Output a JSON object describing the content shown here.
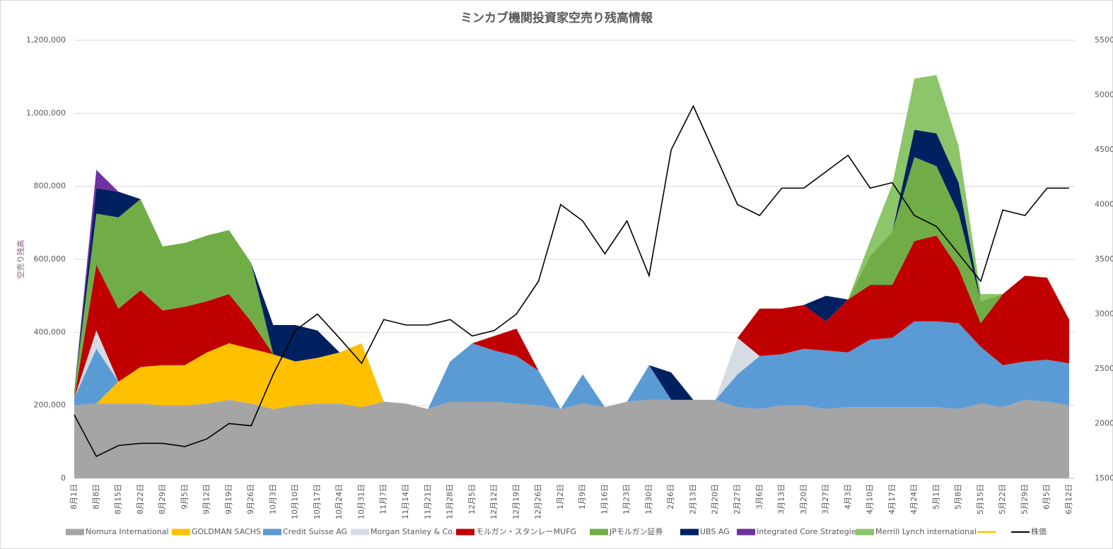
{
  "chart_data": {
    "type": "stacked_area_line",
    "title": "ミンカブ機関投資家空売り残高情報",
    "y_axis_label": "空売り残高",
    "categories": [
      "8月1日",
      "8月8日",
      "8月15日",
      "8月22日",
      "8月29日",
      "9月5日",
      "9月12日",
      "9月19日",
      "9月26日",
      "10月3日",
      "10月10日",
      "10月17日",
      "10月24日",
      "10月31日",
      "11月7日",
      "11月14日",
      "11月21日",
      "11月28日",
      "12月5日",
      "12月12日",
      "12月19日",
      "12月26日",
      "1月2日",
      "1月9日",
      "1月16日",
      "1月23日",
      "1月30日",
      "2月6日",
      "2月13日",
      "2月20日",
      "2月27日",
      "3月6日",
      "3月13日",
      "3月20日",
      "3月27日",
      "4月3日",
      "4月10日",
      "4月17日",
      "4月24日",
      "5月1日",
      "5月8日",
      "5月15日",
      "5月22日",
      "5月29日",
      "6月5日",
      "6月12日"
    ],
    "ylim": [
      0,
      1200000
    ],
    "yticks": [
      0,
      {
        "value": 200000,
        "label": "200,000"
      },
      {
        "value": 400000,
        "label": "400,000"
      },
      {
        "value": 600000,
        "label": "600,000"
      },
      {
        "value": 800000,
        "label": "800,000"
      },
      {
        "value": 1000000,
        "label": "1,000,000"
      },
      {
        "value": 1200000,
        "label": "1,200,000"
      }
    ],
    "y2lim": [
      1500,
      5500
    ],
    "y2ticks": [
      1500,
      2000,
      2500,
      3000,
      3500,
      4000,
      4500,
      5000,
      5500
    ],
    "grid": true,
    "legend": "bottom",
    "series": [
      {
        "name": "Nomura International",
        "color": "#a5a5a5",
        "values": [
          200000,
          205000,
          205000,
          205000,
          200000,
          200000,
          205000,
          215000,
          205000,
          190000,
          200000,
          205000,
          205000,
          195000,
          210000,
          205000,
          190000,
          210000,
          210000,
          210000,
          205000,
          200000,
          190000,
          205000,
          195000,
          210000,
          215000,
          215000,
          215000,
          215000,
          195000,
          190000,
          200000,
          200000,
          190000,
          195000,
          195000,
          195000,
          195000,
          195000,
          190000,
          205000,
          195000,
          215000,
          210000,
          200000
        ]
      },
      {
        "name": "GOLDMAN SACHS",
        "color": "#ffc000",
        "values": [
          0,
          0,
          60000,
          100000,
          110000,
          110000,
          140000,
          155000,
          150000,
          150000,
          120000,
          125000,
          140000,
          175000,
          0,
          0,
          0,
          0,
          0,
          0,
          0,
          0,
          0,
          0,
          0,
          0,
          0,
          0,
          0,
          0,
          0,
          0,
          0,
          0,
          0,
          0,
          0,
          0,
          0,
          0,
          0,
          0,
          0,
          0,
          0,
          0
        ]
      },
      {
        "name": "Credit Suisse AG",
        "color": "#5b9bd5",
        "values": [
          20000,
          150000,
          0,
          0,
          0,
          0,
          0,
          0,
          0,
          0,
          0,
          0,
          0,
          0,
          0,
          0,
          0,
          110000,
          160000,
          140000,
          130000,
          95000,
          0,
          80000,
          0,
          0,
          95000,
          0,
          0,
          0,
          90000,
          145000,
          140000,
          155000,
          160000,
          150000,
          185000,
          190000,
          235000,
          235000,
          235000,
          155000,
          115000,
          105000,
          115000,
          115000
        ]
      },
      {
        "name": "Morgan Stanley & Co.",
        "color": "#d6dce4",
        "values": [
          0,
          50000,
          0,
          0,
          0,
          0,
          0,
          0,
          0,
          0,
          0,
          0,
          0,
          0,
          0,
          0,
          0,
          0,
          0,
          0,
          0,
          0,
          0,
          0,
          0,
          0,
          0,
          0,
          0,
          0,
          100000,
          0,
          0,
          0,
          0,
          0,
          0,
          0,
          0,
          0,
          0,
          0,
          0,
          0,
          0,
          0
        ]
      },
      {
        "name": "モルガン・スタンレーMUFG",
        "color": "#c00000",
        "values": [
          0,
          180000,
          200000,
          210000,
          150000,
          160000,
          140000,
          135000,
          75000,
          0,
          0,
          0,
          0,
          0,
          0,
          0,
          0,
          0,
          0,
          40000,
          75000,
          0,
          0,
          0,
          0,
          0,
          0,
          0,
          0,
          0,
          0,
          130000,
          125000,
          120000,
          80000,
          145000,
          150000,
          145000,
          220000,
          235000,
          150000,
          65000,
          195000,
          235000,
          225000,
          120000
        ]
      },
      {
        "name": "JPモルガン証券",
        "color": "#70ad47",
        "values": [
          20000,
          140000,
          250000,
          250000,
          175000,
          175000,
          180000,
          175000,
          160000,
          0,
          0,
          0,
          0,
          0,
          0,
          0,
          0,
          0,
          0,
          0,
          0,
          0,
          0,
          0,
          0,
          0,
          0,
          0,
          0,
          0,
          0,
          0,
          0,
          0,
          0,
          0,
          80000,
          145000,
          230000,
          190000,
          150000,
          60000,
          0,
          0,
          0,
          0
        ]
      },
      {
        "name": "UBS AG",
        "color": "#002060",
        "values": [
          0,
          70000,
          70000,
          0,
          0,
          0,
          0,
          0,
          0,
          80000,
          100000,
          75000,
          0,
          0,
          0,
          0,
          0,
          0,
          0,
          0,
          0,
          0,
          0,
          0,
          0,
          0,
          0,
          75000,
          0,
          0,
          0,
          0,
          0,
          0,
          70000,
          0,
          0,
          0,
          75000,
          90000,
          85000,
          0,
          0,
          0,
          0,
          0
        ]
      },
      {
        "name": "Integrated Core Strategies",
        "color": "#7030a0",
        "values": [
          0,
          50000,
          0,
          0,
          0,
          0,
          0,
          0,
          0,
          0,
          0,
          0,
          0,
          0,
          0,
          0,
          0,
          0,
          0,
          0,
          0,
          0,
          0,
          0,
          0,
          0,
          0,
          0,
          0,
          0,
          0,
          0,
          0,
          0,
          0,
          0,
          0,
          0,
          0,
          0,
          0,
          0,
          0,
          0,
          0,
          0
        ]
      },
      {
        "name": "Merrill Lynch international",
        "color": "#8cc56a",
        "values": [
          0,
          0,
          0,
          0,
          0,
          0,
          0,
          0,
          0,
          0,
          0,
          0,
          0,
          0,
          0,
          0,
          0,
          0,
          0,
          0,
          0,
          0,
          0,
          0,
          0,
          0,
          0,
          0,
          0,
          0,
          0,
          0,
          0,
          0,
          0,
          0,
          40000,
          130000,
          140000,
          160000,
          100000,
          20000,
          0,
          0,
          0,
          0
        ]
      },
      {
        "name": "株価",
        "color": "#000000",
        "axis": "y2",
        "values": [
          2080,
          1700,
          1800,
          1820,
          1820,
          1790,
          1860,
          2000,
          1980,
          2450,
          2850,
          3000,
          2780,
          2550,
          2950,
          2900,
          2900,
          2950,
          2800,
          2850,
          3000,
          3300,
          4000,
          3850,
          3550,
          3850,
          3350,
          4500,
          4900,
          4450,
          4000,
          3900,
          4150,
          4150,
          4300,
          4450,
          4150,
          4200,
          3900,
          3800,
          3550,
          3300,
          3950,
          3900,
          4150,
          4150
        ]
      }
    ]
  }
}
